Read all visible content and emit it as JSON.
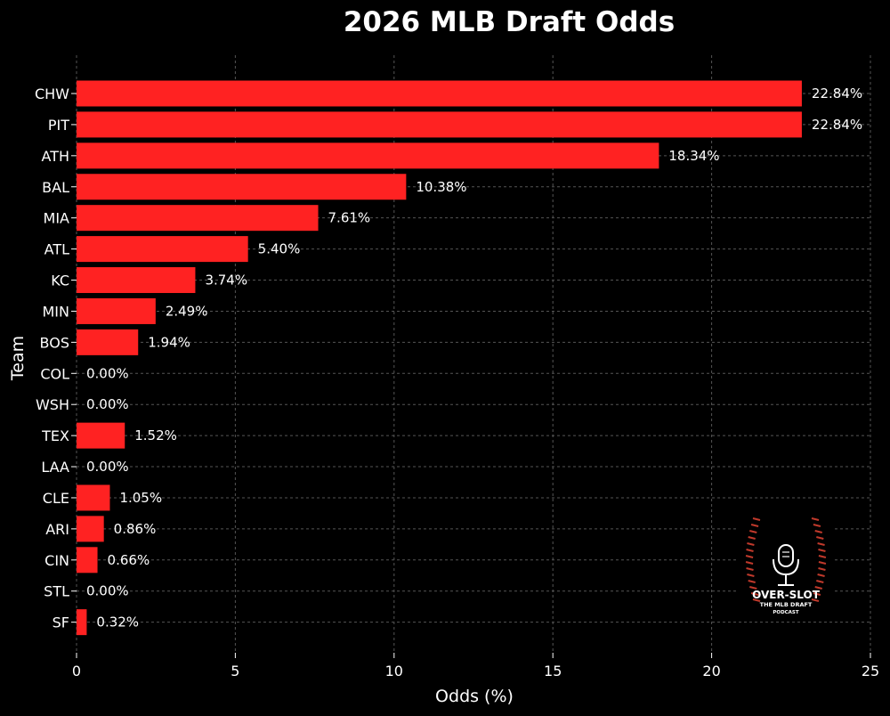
{
  "chart_data": {
    "type": "bar",
    "orientation": "horizontal",
    "title": "2026 MLB Draft Odds",
    "xlabel": "Odds (%)",
    "ylabel": "Team",
    "xlim": [
      0,
      25
    ],
    "xticks": [
      0,
      5,
      10,
      15,
      20,
      25
    ],
    "grid": true,
    "bar_color": "#ff2222",
    "background": "#000000",
    "categories": [
      "CHW",
      "PIT",
      "ATH",
      "BAL",
      "MIA",
      "ATL",
      "KC",
      "MIN",
      "BOS",
      "COL",
      "WSH",
      "TEX",
      "LAA",
      "CLE",
      "ARI",
      "CIN",
      "STL",
      "SF"
    ],
    "values": [
      22.84,
      22.84,
      18.34,
      10.38,
      7.61,
      5.4,
      3.74,
      2.49,
      1.94,
      0.0,
      0.0,
      1.52,
      0.0,
      1.05,
      0.86,
      0.66,
      0.0,
      0.32
    ],
    "labels": [
      "22.84%",
      "22.84%",
      "18.34%",
      "10.38%",
      "7.61%",
      "5.40%",
      "3.74%",
      "2.49%",
      "1.94%",
      "0.00%",
      "0.00%",
      "1.52%",
      "0.00%",
      "1.05%",
      "0.86%",
      "0.66%",
      "0.00%",
      "0.32%"
    ]
  },
  "logo": {
    "name": "OVER-SLOT",
    "subtitle_line1": "THE MLB DRAFT",
    "subtitle_line2": "PODCAST",
    "accent_color": "#c0392b"
  }
}
